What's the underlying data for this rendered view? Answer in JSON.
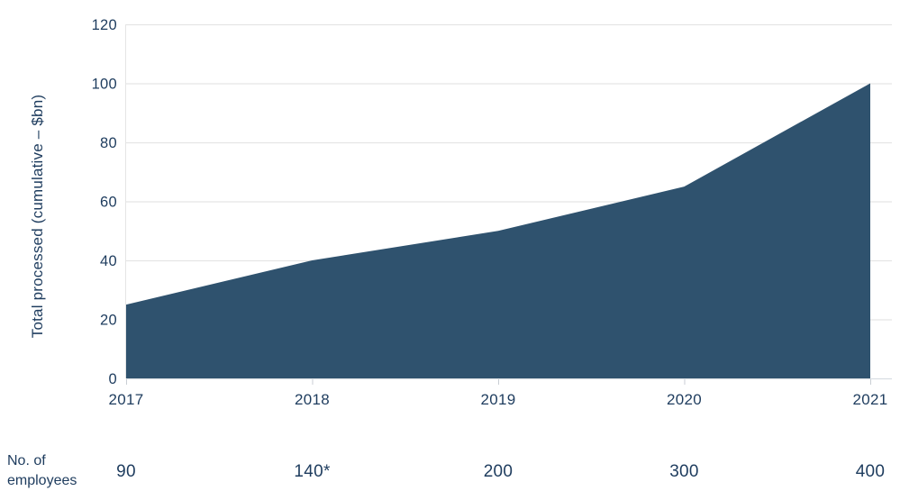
{
  "chart_data": {
    "type": "area",
    "title": "",
    "ylabel": "Total processed (cumulative – $bn)",
    "xlabel": "",
    "categories": [
      "2017",
      "2018",
      "2019",
      "2020",
      "2021"
    ],
    "series": [
      {
        "name": "Total processed cumulative $bn",
        "values": [
          25,
          40,
          50,
          65,
          100
        ]
      }
    ],
    "yticks": [
      0,
      20,
      40,
      60,
      80,
      100,
      120
    ],
    "ylim": [
      0,
      120
    ],
    "grid": "horizontal",
    "legend": "none",
    "colors": {
      "area_fill": "#2F526E",
      "text": "#1E3C5E",
      "gridline": "#e5e5e5",
      "axis_line": "#d8dde2",
      "tick_mark": "#c9ced4"
    }
  },
  "employees_row": {
    "label": "No. of employees",
    "values": [
      "90",
      "140*",
      "200",
      "300",
      "400"
    ]
  }
}
